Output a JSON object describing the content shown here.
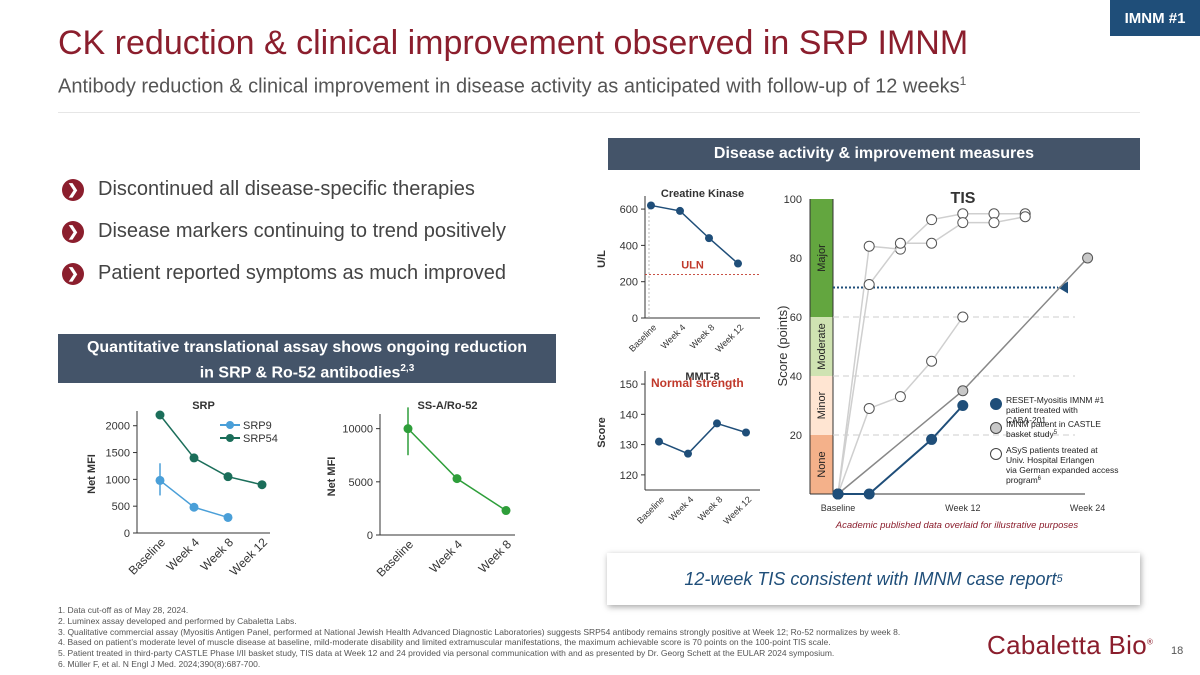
{
  "tag": "IMNM #1",
  "title": "CK reduction & clinical improvement observed in SRP IMNM",
  "subtitle": "Antibody reduction & clinical improvement in disease activity as anticipated with follow-up of 12 weeks",
  "subtitle_sup": "1",
  "bullets": [
    "Discontinued all disease-specific therapies",
    "Disease markers continuing to trend positively",
    "Patient reported symptoms as much improved"
  ],
  "assay_box": {
    "line1": "Quantitative translational assay shows ongoing reduction",
    "line2": "in SRP & Ro-52 antibodies",
    "sup": "2,3"
  },
  "disease_box": "Disease activity & improvement measures",
  "callout": {
    "text": "12-week TIS consistent with IMNM case report",
    "sup": "5"
  },
  "footnotes": [
    "1.  Data cut-off as of May 28, 2024.",
    "2.  Luminex assay developed and performed by Cabaletta Labs.",
    "3.  Qualitative commercial assay (Myositis Antigen Panel, performed at National Jewish Health Advanced Diagnostic Laboratories) suggests SRP54 antibody remains strongly positive at Week 12; Ro-52 normalizes by week 8.",
    "4.  Based on patient’s moderate level of muscle disease at baseline, mild-moderate disability and limited extramuscular manifestations, the maximum achievable score is 70 points on the 100-point TIS scale.",
    "5.  Patient treated in third-party CASTLE Phase I/II basket study, TIS data at Week 12 and 24 provided via personal communication with and as presented by Dr. Georg Schett at the EULAR 2024 symposium.",
    "6.  Müller F, et al. N Engl J Med. 2024;390(8):687-700."
  ],
  "logo": {
    "text": "Cabaletta Bio",
    "sup": "®"
  },
  "page_number": "18",
  "colors": {
    "maroon": "#8b1e2d",
    "slate": "#445469",
    "navy": "#1f4e79",
    "teal": "#1b6e5a",
    "srp9": "#4a9fd8",
    "green": "#2e9e3a"
  },
  "chart_data": [
    {
      "id": "srp",
      "type": "line",
      "title": "SRP",
      "ylabel": "Net MFI",
      "categories": [
        "Baseline",
        "Week 4",
        "Week 8",
        "Week 12"
      ],
      "yticks": [
        0,
        500,
        1000,
        1500,
        2000
      ],
      "ylim": [
        0,
        2200
      ],
      "series": [
        {
          "name": "SRP9",
          "values": [
            980,
            480,
            290,
            null
          ],
          "error": [
            [
              700,
              1300
            ],
            null,
            null,
            null
          ]
        },
        {
          "name": "SRP54",
          "values": [
            2200,
            1400,
            1050,
            900
          ]
        }
      ]
    },
    {
      "id": "ro52",
      "type": "line",
      "title": "SS-A/Ro-52",
      "ylabel": "Net MFI",
      "categories": [
        "Baseline",
        "Week 4",
        "Week 8"
      ],
      "yticks": [
        0,
        5000,
        10000
      ],
      "ylim": [
        0,
        11000
      ],
      "series": [
        {
          "name": "Ro-52",
          "values": [
            10000,
            5300,
            2300
          ],
          "error": [
            [
              7500,
              12000
            ],
            null,
            null
          ]
        }
      ]
    },
    {
      "id": "ck",
      "type": "line",
      "title": "Creatine Kinase",
      "ylabel": "U/L",
      "categories": [
        "Baseline",
        "Week 4",
        "Week 8",
        "Week 12"
      ],
      "yticks": [
        0,
        200,
        400,
        600
      ],
      "ylim": [
        0,
        650
      ],
      "reference": {
        "label": "ULN",
        "value": 240
      },
      "series": [
        {
          "name": "CK",
          "values": [
            620,
            590,
            440,
            300
          ]
        }
      ]
    },
    {
      "id": "mmt8",
      "type": "line",
      "title": "MMT-8",
      "ylabel": "Score",
      "categories": [
        "Baseline",
        "Week 4",
        "Week 8",
        "Week 12"
      ],
      "yticks": [
        120,
        130,
        140,
        150
      ],
      "ylim": [
        115,
        153
      ],
      "annotation": "Normal strength",
      "series": [
        {
          "name": "MMT-8",
          "values": [
            131,
            127,
            137,
            134
          ]
        }
      ]
    },
    {
      "id": "tis",
      "type": "line",
      "title": "TIS",
      "ylabel": "Score (points)",
      "categories": [
        "Baseline",
        "Week 12",
        "Week 24"
      ],
      "yticks": [
        20,
        40,
        60,
        80,
        100
      ],
      "ylim": [
        0,
        100
      ],
      "bands": [
        {
          "label": "None",
          "from": 0,
          "to": 20,
          "color": "#f4b18a"
        },
        {
          "label": "Minor",
          "from": 20,
          "to": 40,
          "color": "#ffe5d2"
        },
        {
          "label": "Moderate",
          "from": 40,
          "to": 60,
          "color": "#cfe3b2"
        },
        {
          "label": "Major",
          "from": 60,
          "to": 100,
          "color": "#63a63f"
        }
      ],
      "max_achievable_marker": 70,
      "footnote": "Academic published data overlaid for illustrative purposes",
      "legend": [
        {
          "label": "RESET-Myositis IMNM #1 patient treated with CABA-201",
          "color": "#1f4e79"
        },
        {
          "label": "IMNM patient in CASTLE basket study",
          "sup": "5",
          "color": "#c8c8c8"
        },
        {
          "label": "ASyS patients treated at Univ. Hospital Erlangen via German expanded access program",
          "sup": "6",
          "color": "#ffffff"
        }
      ],
      "series": [
        {
          "name": "RESET-Myositis IMNM #1",
          "points": [
            [
              0,
              0
            ],
            [
              1,
              0
            ],
            [
              3,
              18.5
            ],
            [
              4,
              30
            ]
          ]
        },
        {
          "name": "IMNM patient in CASTLE",
          "points": [
            [
              0,
              0
            ],
            [
              4,
              35
            ],
            [
              8,
              80
            ]
          ]
        },
        {
          "name": "ASyS 1",
          "points": [
            [
              0,
              0
            ],
            [
              1,
              84
            ],
            [
              2,
              83
            ],
            [
              3,
              93
            ],
            [
              4,
              95
            ],
            [
              5,
              95
            ],
            [
              6,
              95
            ]
          ]
        },
        {
          "name": "ASyS 2",
          "points": [
            [
              0,
              0
            ],
            [
              1,
              71
            ],
            [
              2,
              85
            ],
            [
              3,
              85
            ],
            [
              4,
              92
            ],
            [
              5,
              92
            ],
            [
              6,
              94
            ]
          ]
        },
        {
          "name": "ASyS 3",
          "points": [
            [
              0,
              0
            ],
            [
              1,
              29
            ],
            [
              2,
              33
            ],
            [
              3,
              45
            ],
            [
              4,
              60
            ]
          ]
        }
      ],
      "x_labels_at": [
        0,
        4,
        8
      ]
    }
  ]
}
